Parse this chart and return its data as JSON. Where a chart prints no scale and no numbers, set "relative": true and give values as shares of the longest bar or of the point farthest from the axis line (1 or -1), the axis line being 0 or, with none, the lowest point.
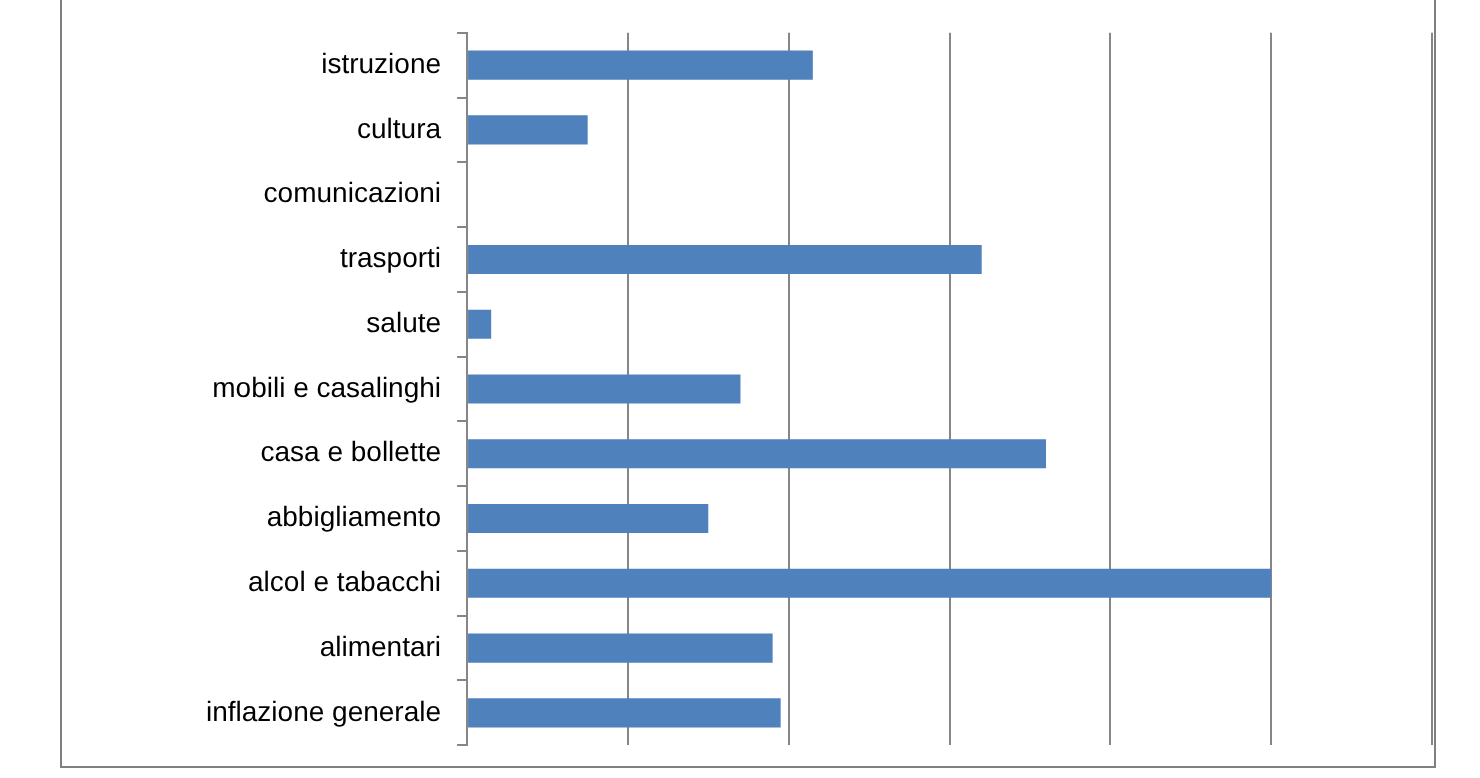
{
  "chart_data": {
    "type": "bar",
    "orientation": "horizontal",
    "relative": true,
    "grid": "x",
    "legend": false,
    "categories": [
      "istruzione",
      "cultura",
      "comunicazioni",
      "trasporti",
      "salute",
      "mobili e casalinghi",
      "casa e bollette",
      "abbigliamento",
      "alcol e tabacchi",
      "alimentari",
      "inflazione generale"
    ],
    "values": [
      0.43,
      0.15,
      null,
      0.64,
      0.03,
      0.34,
      0.72,
      0.3,
      1,
      0.38,
      0.39
    ],
    "color": "#4f81bd"
  }
}
